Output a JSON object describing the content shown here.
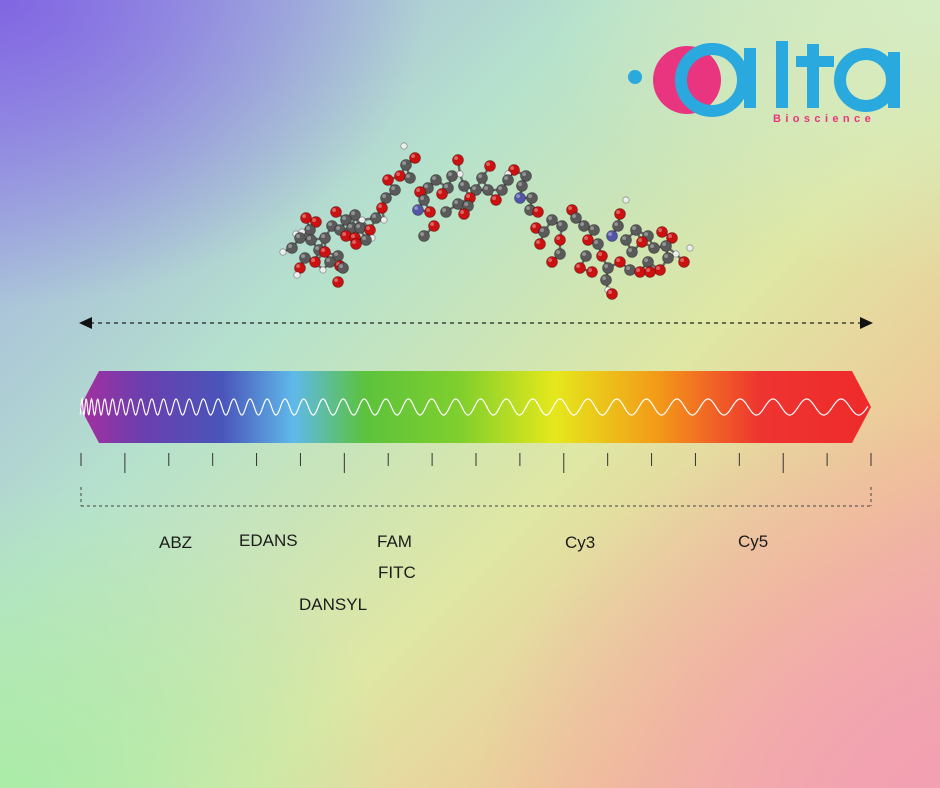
{
  "brand": {
    "name": "alta",
    "tagline": "Bioscience",
    "colors": {
      "cyan": "#2aa9df",
      "magenta": "#e9357f"
    }
  },
  "spectrum": {
    "colors": [
      "#a62f9f",
      "#4a55ba",
      "#5fb9ea",
      "#5cc23c",
      "#e5e81c",
      "#f39a18",
      "#ee3430",
      "#ee2a2a"
    ],
    "tick_count": 19
  },
  "dyes": [
    {
      "name": "ABZ"
    },
    {
      "name": "EDANS"
    },
    {
      "name": "DANSYL"
    },
    {
      "name": "FAM"
    },
    {
      "name": "FITC"
    },
    {
      "name": "Cy3"
    },
    {
      "name": "Cy5"
    }
  ],
  "molecule": {
    "atom_colors": {
      "carbon": "#5a5a5a",
      "oxygen": "#cc1111",
      "nitrogen": "#5555a8",
      "hydrogen": "#ececec"
    }
  }
}
